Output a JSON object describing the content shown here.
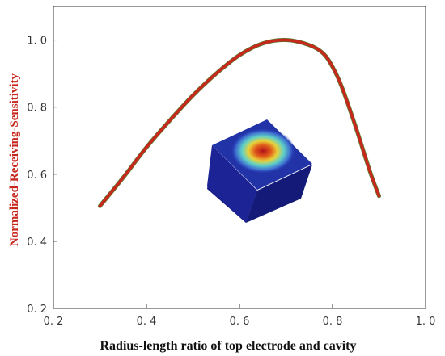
{
  "chart_data": {
    "type": "line",
    "title": "",
    "xlabel": "Radius-length ratio of top electrode and cavity",
    "ylabel": "Normalized-Receiving-Sensitivity",
    "xlim": [
      0.2,
      1.0
    ],
    "ylim": [
      0.2,
      1.1
    ],
    "x_ticks": [
      0.2,
      0.4,
      0.6,
      0.8,
      1.0
    ],
    "x_tick_labels": [
      "0. 2",
      "0. 4",
      "0. 6",
      "0. 8",
      "1. 0"
    ],
    "y_ticks": [
      0.2,
      0.4,
      0.6,
      0.8,
      1.0
    ],
    "y_tick_labels": [
      "0. 2",
      "0. 4",
      "0. 6",
      "0. 8",
      "1. 0"
    ],
    "grid": false,
    "legend": "none",
    "series": [
      {
        "color": "#c8271e",
        "highlight_color": "#5a7a2a",
        "x": [
          0.3,
          0.35,
          0.4,
          0.45,
          0.5,
          0.55,
          0.6,
          0.65,
          0.7,
          0.75,
          0.78,
          0.8,
          0.82,
          0.85,
          0.88,
          0.9
        ],
        "y": [
          0.505,
          0.59,
          0.68,
          0.76,
          0.835,
          0.9,
          0.955,
          0.99,
          1.0,
          0.985,
          0.96,
          0.92,
          0.86,
          0.74,
          0.61,
          0.535
        ]
      }
    ],
    "inset": {
      "type": "3d-simulation-cube",
      "colors": {
        "face_front": "#1a1f8c",
        "face_side": "#101566",
        "face_top": "#2233a8",
        "hot_spot": "#c0171b"
      }
    }
  }
}
